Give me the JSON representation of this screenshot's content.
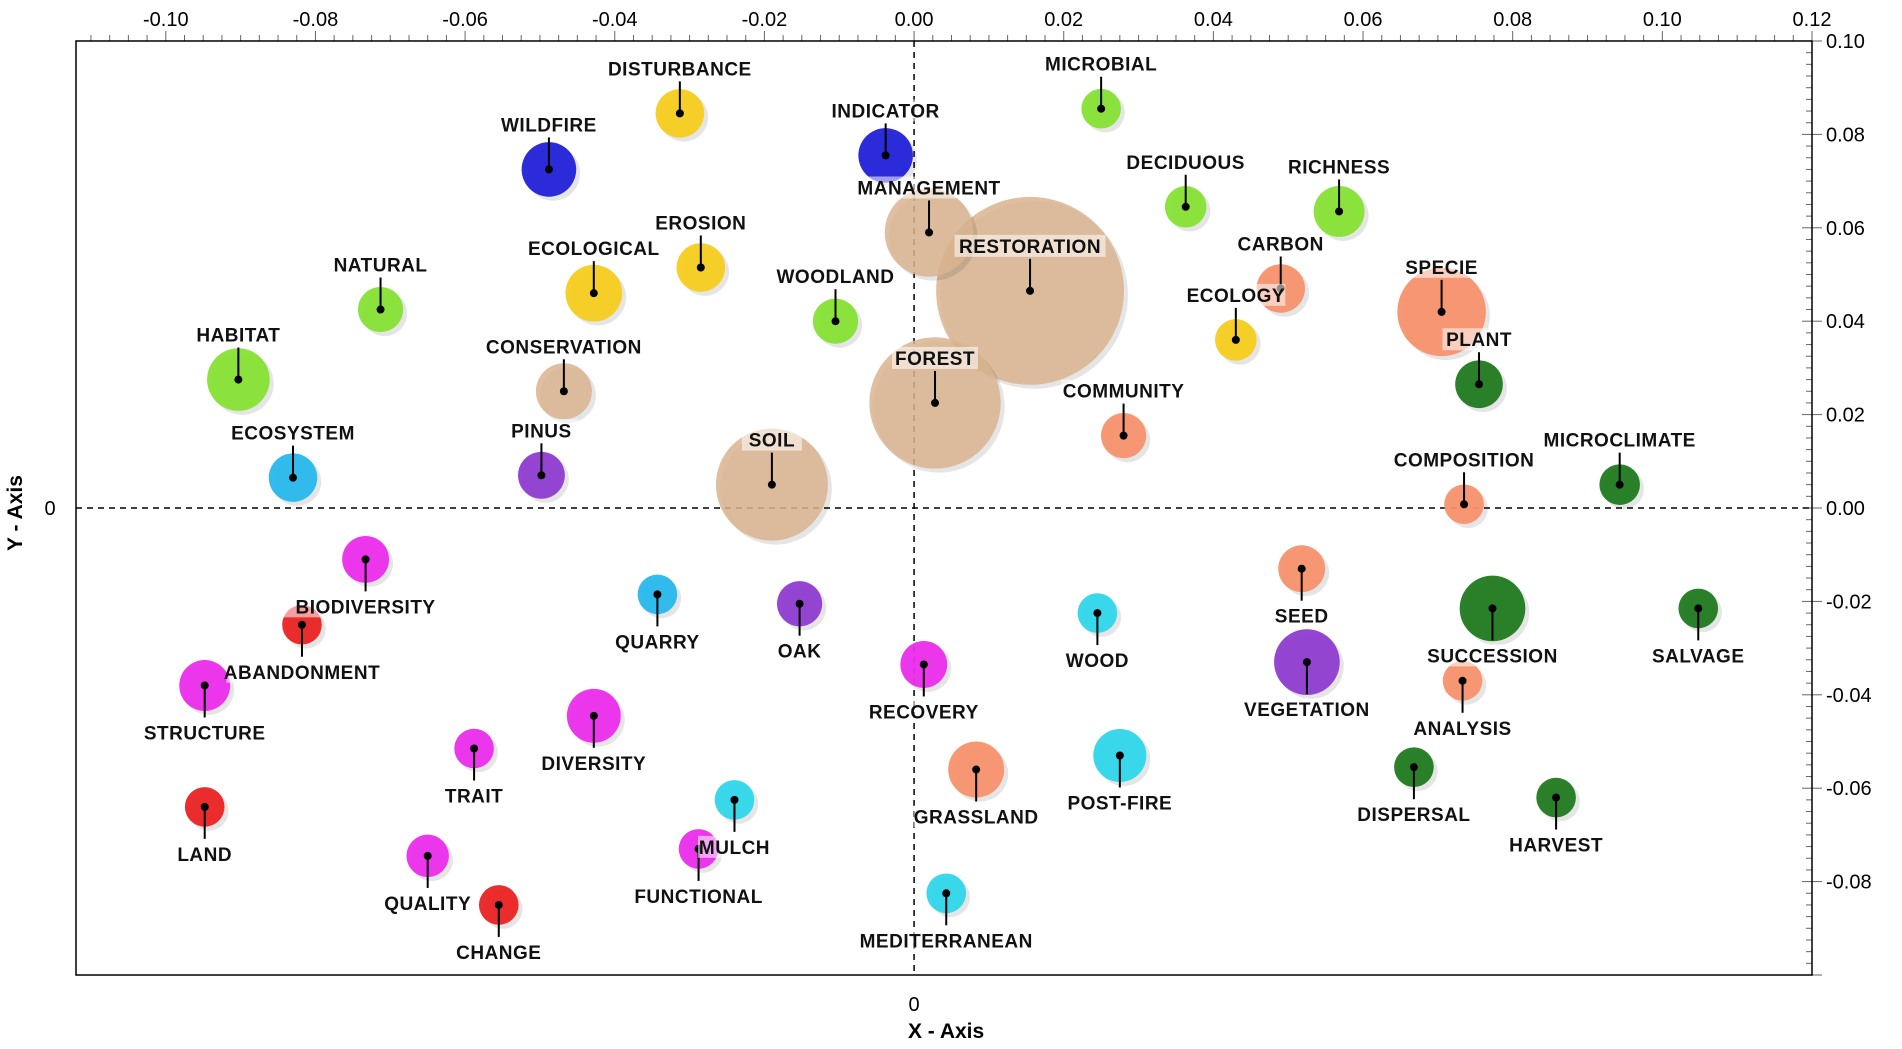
{
  "chart_data": {
    "type": "scatter",
    "subtype": "bubble",
    "xlabel": "X - Axis",
    "ylabel": "Y - Axis",
    "xlim": [
      -0.112,
      0.12
    ],
    "ylim": [
      -0.1,
      0.1
    ],
    "x_ticks": [
      -0.1,
      -0.08,
      -0.06,
      -0.04,
      -0.02,
      0.0,
      0.02,
      0.04,
      0.06,
      0.08,
      0.1,
      0.12
    ],
    "x_tick_labels": [
      "-0.10",
      "-0.08",
      "-0.06",
      "-0.04",
      "-0.02",
      "0.00",
      "0.02",
      "0.04",
      "0.06",
      "0.08",
      "0.10",
      "0.12"
    ],
    "y_ticks": [
      0.1,
      0.08,
      0.06,
      0.04,
      0.02,
      0.0,
      -0.02,
      -0.04,
      -0.06,
      -0.08
    ],
    "y_tick_labels": [
      "0.10",
      "0.08",
      "0.06",
      "0.04",
      "0.02",
      "0.00",
      "-0.02",
      "-0.04",
      "-0.06",
      "-0.08"
    ],
    "origin_x_label": "0",
    "origin_y_label": "0",
    "grid": false,
    "reference_lines": "dashed at x=0 and y=0",
    "colors": {
      "tan": "#d9b48f",
      "yellow": "#f5cc1d",
      "lightgreen": "#86e234",
      "blue": "#2121d8",
      "salmon": "#f7916d",
      "darkgreen": "#1f7a1f",
      "cyan": "#2ed6ea",
      "skyblue": "#27b8ec",
      "purple": "#8e3cd0",
      "magenta": "#ec2cec",
      "red": "#ea2222"
    },
    "points": [
      {
        "label": "DISTURBANCE",
        "x": -0.0313,
        "y": 0.0845,
        "size": 3.0,
        "color": "yellow",
        "label_pos": "above"
      },
      {
        "label": "WILDFIRE",
        "x": -0.0488,
        "y": 0.0725,
        "size": 3.8,
        "color": "blue",
        "label_pos": "above"
      },
      {
        "label": "INDICATOR",
        "x": -0.0038,
        "y": 0.0755,
        "size": 3.8,
        "color": "blue",
        "label_pos": "above"
      },
      {
        "label": "MICROBIAL",
        "x": 0.025,
        "y": 0.0855,
        "size": 2.0,
        "color": "lightgreen",
        "label_pos": "above"
      },
      {
        "label": "MANAGEMENT",
        "x": 0.002,
        "y": 0.059,
        "size": 10.0,
        "color": "tan",
        "label_pos": "above"
      },
      {
        "label": "RESTORATION",
        "x": 0.0155,
        "y": 0.0465,
        "size": 45.0,
        "color": "tan",
        "label_pos": "above"
      },
      {
        "label": "DECIDUOUS",
        "x": 0.0363,
        "y": 0.0645,
        "size": 2.2,
        "color": "lightgreen",
        "label_pos": "above"
      },
      {
        "label": "RICHNESS",
        "x": 0.0568,
        "y": 0.0635,
        "size": 3.3,
        "color": "lightgreen",
        "label_pos": "above"
      },
      {
        "label": "NATURAL",
        "x": -0.0713,
        "y": 0.0425,
        "size": 2.6,
        "color": "lightgreen",
        "label_pos": "above"
      },
      {
        "label": "ECOLOGICAL",
        "x": -0.0428,
        "y": 0.046,
        "size": 4.1,
        "color": "yellow",
        "label_pos": "above"
      },
      {
        "label": "EROSION",
        "x": -0.0285,
        "y": 0.0515,
        "size": 3.0,
        "color": "yellow",
        "label_pos": "above"
      },
      {
        "label": "WOODLAND",
        "x": -0.0105,
        "y": 0.04,
        "size": 2.6,
        "color": "lightgreen",
        "label_pos": "above"
      },
      {
        "label": "CARBON",
        "x": 0.049,
        "y": 0.047,
        "size": 3.0,
        "color": "salmon",
        "label_pos": "above"
      },
      {
        "label": "SPECIE",
        "x": 0.0705,
        "y": 0.042,
        "size": 10.0,
        "color": "salmon",
        "label_pos": "above"
      },
      {
        "label": "ECOLOGY",
        "x": 0.043,
        "y": 0.036,
        "size": 2.2,
        "color": "yellow",
        "label_pos": "above"
      },
      {
        "label": "HABITAT",
        "x": -0.0903,
        "y": 0.0275,
        "size": 5.0,
        "color": "lightgreen",
        "label_pos": "above"
      },
      {
        "label": "CONSERVATION",
        "x": -0.0468,
        "y": 0.025,
        "size": 4.0,
        "color": "tan",
        "label_pos": "above"
      },
      {
        "label": "FOREST",
        "x": 0.0028,
        "y": 0.0225,
        "size": 22.0,
        "color": "tan",
        "label_pos": "above"
      },
      {
        "label": "PLANT",
        "x": 0.0755,
        "y": 0.0265,
        "size": 2.9,
        "color": "darkgreen",
        "label_pos": "above"
      },
      {
        "label": "COMMUNITY",
        "x": 0.028,
        "y": 0.0155,
        "size": 2.6,
        "color": "salmon",
        "label_pos": "above"
      },
      {
        "label": "ECOSYSTEM",
        "x": -0.083,
        "y": 0.0065,
        "size": 3.0,
        "color": "skyblue",
        "label_pos": "above"
      },
      {
        "label": "PINUS",
        "x": -0.0498,
        "y": 0.007,
        "size": 2.8,
        "color": "purple",
        "label_pos": "above"
      },
      {
        "label": "SOIL",
        "x": -0.019,
        "y": 0.005,
        "size": 16.0,
        "color": "tan",
        "label_pos": "above"
      },
      {
        "label": "COMPOSITION",
        "x": 0.0735,
        "y": 0.0008,
        "size": 2.0,
        "color": "salmon",
        "label_pos": "above"
      },
      {
        "label": "MICROCLIMATE",
        "x": 0.0943,
        "y": 0.005,
        "size": 2.1,
        "color": "darkgreen",
        "label_pos": "above"
      },
      {
        "label": "BIODIVERSITY",
        "x": -0.0733,
        "y": -0.011,
        "size": 2.8,
        "color": "magenta",
        "label_pos": "below"
      },
      {
        "label": "ABANDONMENT",
        "x": -0.0818,
        "y": -0.025,
        "size": 2.0,
        "color": "red",
        "label_pos": "below"
      },
      {
        "label": "QUARRY",
        "x": -0.0343,
        "y": -0.0185,
        "size": 2.0,
        "color": "skyblue",
        "label_pos": "below"
      },
      {
        "label": "OAK",
        "x": -0.0153,
        "y": -0.0205,
        "size": 2.6,
        "color": "purple",
        "label_pos": "below"
      },
      {
        "label": "WOOD",
        "x": 0.0245,
        "y": -0.0225,
        "size": 2.0,
        "color": "cyan",
        "label_pos": "below"
      },
      {
        "label": "SEED",
        "x": 0.0518,
        "y": -0.013,
        "size": 2.8,
        "color": "salmon",
        "label_pos": "below"
      },
      {
        "label": "SUCCESSION",
        "x": 0.0773,
        "y": -0.0215,
        "size": 5.5,
        "color": "darkgreen",
        "label_pos": "below"
      },
      {
        "label": "SALVAGE",
        "x": 0.1048,
        "y": -0.0215,
        "size": 2.0,
        "color": "darkgreen",
        "label_pos": "below"
      },
      {
        "label": "STRUCTURE",
        "x": -0.0948,
        "y": -0.038,
        "size": 3.3,
        "color": "magenta",
        "label_pos": "below"
      },
      {
        "label": "RECOVERY",
        "x": 0.0013,
        "y": -0.0335,
        "size": 2.8,
        "color": "magenta",
        "label_pos": "below"
      },
      {
        "label": "VEGETATION",
        "x": 0.0525,
        "y": -0.033,
        "size": 5.5,
        "color": "purple",
        "label_pos": "below"
      },
      {
        "label": "ANALYSIS",
        "x": 0.0733,
        "y": -0.037,
        "size": 2.0,
        "color": "salmon",
        "label_pos": "below"
      },
      {
        "label": "DIVERSITY",
        "x": -0.0428,
        "y": -0.0445,
        "size": 3.7,
        "color": "magenta",
        "label_pos": "below"
      },
      {
        "label": "TRAIT",
        "x": -0.0588,
        "y": -0.0515,
        "size": 2.0,
        "color": "magenta",
        "label_pos": "below"
      },
      {
        "label": "GRASSLAND",
        "x": 0.0083,
        "y": -0.056,
        "size": 4.0,
        "color": "salmon",
        "label_pos": "below"
      },
      {
        "label": "POST-FIRE",
        "x": 0.0275,
        "y": -0.053,
        "size": 3.6,
        "color": "cyan",
        "label_pos": "below"
      },
      {
        "label": "DISPERSAL",
        "x": 0.0668,
        "y": -0.0555,
        "size": 2.0,
        "color": "darkgreen",
        "label_pos": "below"
      },
      {
        "label": "LAND",
        "x": -0.0948,
        "y": -0.064,
        "size": 2.0,
        "color": "red",
        "label_pos": "below"
      },
      {
        "label": "MULCH",
        "x": -0.024,
        "y": -0.0625,
        "size": 2.0,
        "color": "cyan",
        "label_pos": "below"
      },
      {
        "label": "HARVEST",
        "x": 0.0858,
        "y": -0.062,
        "size": 2.0,
        "color": "darkgreen",
        "label_pos": "below"
      },
      {
        "label": "QUALITY",
        "x": -0.065,
        "y": -0.0745,
        "size": 2.3,
        "color": "magenta",
        "label_pos": "below"
      },
      {
        "label": "FUNCTIONAL",
        "x": -0.0288,
        "y": -0.073,
        "size": 2.0,
        "color": "magenta",
        "label_pos": "below"
      },
      {
        "label": "CHANGE",
        "x": -0.0555,
        "y": -0.085,
        "size": 2.0,
        "color": "red",
        "label_pos": "below"
      },
      {
        "label": "MEDITERRANEAN",
        "x": 0.0043,
        "y": -0.0825,
        "size": 2.0,
        "color": "cyan",
        "label_pos": "below"
      }
    ]
  }
}
